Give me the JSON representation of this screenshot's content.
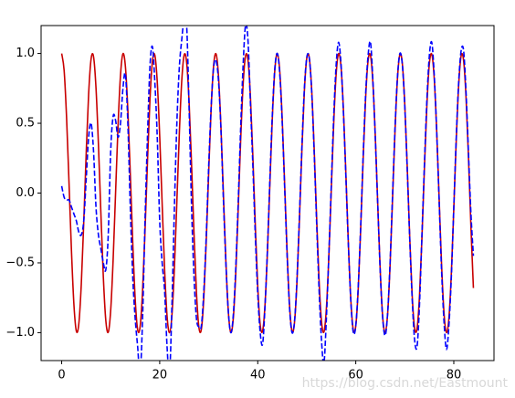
{
  "chart_data": {
    "type": "line",
    "x": [
      0,
      0.5,
      1,
      1.5,
      2,
      2.5,
      3,
      3.5,
      4,
      4.5,
      5,
      5.5,
      6,
      6.5,
      7,
      7.5,
      8,
      8.5,
      9,
      9.5,
      10,
      10.5,
      11,
      11.5,
      12,
      12.5,
      13,
      13.5,
      14,
      14.5,
      15,
      15.5,
      16,
      16.5,
      17,
      17.5,
      18,
      18.5,
      19,
      19.5,
      20,
      20.5,
      21,
      21.5,
      22,
      22.5,
      23,
      23.5,
      24,
      24.5,
      25,
      25.5,
      26,
      26.5,
      27,
      27.5,
      28,
      28.5,
      29,
      29.5,
      30,
      30.5,
      31,
      31.5,
      32,
      32.5,
      33,
      33.5,
      34,
      34.5,
      35,
      35.5,
      36,
      36.5,
      37,
      37.5,
      38,
      38.5,
      39,
      39.5,
      40,
      40.5,
      41,
      41.5,
      42,
      42.5,
      43,
      43.5,
      44,
      44.5,
      45,
      45.5,
      46,
      46.5,
      47,
      47.5,
      48,
      48.5,
      49,
      49.5,
      50,
      50.5,
      51,
      51.5,
      52,
      52.5,
      53,
      53.5,
      54,
      54.5,
      55,
      55.5,
      56,
      56.5,
      57,
      57.5,
      58,
      58.5,
      59,
      59.5,
      60,
      60.5,
      61,
      61.5,
      62,
      62.5,
      63,
      63.5,
      64,
      64.5,
      65,
      65.5,
      66,
      66.5,
      67,
      67.5,
      68,
      68.5,
      69,
      69.5,
      70,
      70.5,
      71,
      71.5,
      72,
      72.5,
      73,
      73.5,
      74,
      74.5,
      75,
      75.5,
      76,
      76.5,
      77,
      77.5,
      78,
      78.5,
      79,
      79.5,
      80,
      80.5,
      81,
      81.5,
      82,
      82.5,
      83,
      83.5,
      84
    ],
    "series": [
      {
        "color": "#c80000",
        "dash": false,
        "values": [
          1,
          0.878,
          0.54,
          0.071,
          -0.416,
          -0.801,
          -0.99,
          -0.936,
          -0.654,
          -0.211,
          0.284,
          0.709,
          0.96,
          0.977,
          0.754,
          0.346,
          -0.146,
          -0.602,
          -0.911,
          -0.997,
          -0.839,
          -0.476,
          0.004,
          0.483,
          0.844,
          0.998,
          0.907,
          0.595,
          0.137,
          -0.355,
          -0.76,
          -0.979,
          -0.958,
          -0.702,
          -0.275,
          0.22,
          0.66,
          0.939,
          0.989,
          0.796,
          0.408,
          -0.08,
          -0.548,
          -0.882,
          -1.0,
          -0.873,
          -0.533,
          -0.062,
          0.424,
          0.806,
          0.991,
          0.933,
          0.647,
          0.202,
          -0.292,
          -0.715,
          -0.963,
          -0.975,
          -0.748,
          -0.337,
          0.154,
          0.608,
          0.915,
          0.996,
          0.834,
          0.468,
          -0.013,
          -0.491,
          -0.849,
          -0.998,
          -0.904,
          -0.588,
          -0.128,
          0.363,
          0.766,
          0.98,
          0.955,
          0.696,
          0.267,
          -0.228,
          -0.667,
          -0.943,
          -0.987,
          -0.791,
          -0.4,
          0.088,
          0.556,
          0.886,
          1.0,
          0.869,
          0.525,
          0.053,
          -0.432,
          -0.812,
          -0.992,
          -0.927,
          -0.64,
          -0.194,
          0.3,
          0.721,
          0.965,
          0.973,
          0.742,
          0.33,
          -0.163,
          -0.616,
          -0.918,
          -0.995,
          -0.829,
          -0.461,
          0.022,
          0.499,
          0.853,
          0.999,
          0.9,
          0.581,
          0.119,
          -0.372,
          -0.771,
          -0.982,
          -0.952,
          -0.689,
          -0.258,
          0.237,
          0.673,
          0.945,
          0.986,
          0.785,
          0.392,
          -0.097,
          -0.562,
          -0.891,
          -1.0,
          -0.864,
          -0.517,
          -0.044,
          0.44,
          0.817,
          0.993,
          0.927,
          0.633,
          0.185,
          -0.309,
          -0.727,
          -0.967,
          -0.971,
          -0.736,
          -0.32,
          0.172,
          0.622,
          0.922,
          0.995,
          0.824,
          0.452,
          -0.031,
          -0.507,
          -0.858,
          -0.999,
          -0.897,
          -0.574,
          -0.11,
          0.38,
          0.777,
          0.984,
          0.95,
          0.683,
          0.249,
          -0.246,
          -0.68
        ]
      },
      {
        "color": "#0000ff",
        "dash": true,
        "values": [
          0.05,
          -0.03,
          -0.05,
          -0.05,
          -0.1,
          -0.15,
          -0.2,
          -0.28,
          -0.3,
          -0.2,
          0.1,
          0.4,
          0.5,
          0.3,
          -0.1,
          -0.3,
          -0.4,
          -0.5,
          -0.55,
          -0.3,
          0.3,
          0.55,
          0.52,
          0.4,
          0.5,
          0.75,
          0.85,
          0.5,
          -0.1,
          -0.6,
          -0.9,
          -1.1,
          -1.3,
          -0.9,
          -0.2,
          0.4,
          0.9,
          1.05,
          0.8,
          0.4,
          -0.2,
          -0.5,
          -0.7,
          -1.1,
          -1.3,
          -0.8,
          -0.1,
          0.5,
          0.9,
          1.1,
          1.25,
          1.2,
          0.6,
          -0.1,
          -0.6,
          -0.9,
          -0.96,
          -0.95,
          -0.7,
          -0.3,
          0.2,
          0.62,
          0.9,
          0.95,
          0.8,
          0.45,
          -0.05,
          -0.5,
          -0.85,
          -1.0,
          -0.88,
          -0.55,
          -0.08,
          0.45,
          0.9,
          1.2,
          1.1,
          0.65,
          0.2,
          -0.3,
          -0.72,
          -1.0,
          -1.08,
          -0.8,
          -0.38,
          0.12,
          0.58,
          0.9,
          1.0,
          0.85,
          0.5,
          0.03,
          -0.45,
          -0.83,
          -1.0,
          -0.92,
          -0.62,
          -0.17,
          0.32,
          0.74,
          0.97,
          0.97,
          0.73,
          0.3,
          -0.2,
          -0.68,
          -1.05,
          -1.22,
          -0.9,
          -0.45,
          0.05,
          0.55,
          0.92,
          1.08,
          0.92,
          0.56,
          0.1,
          -0.38,
          -0.78,
          -1.0,
          -0.95,
          -0.67,
          -0.24,
          0.26,
          0.7,
          0.98,
          1.08,
          0.8,
          0.38,
          -0.1,
          -0.57,
          -0.9,
          -1.02,
          -0.86,
          -0.5,
          -0.02,
          0.46,
          0.83,
          1.0,
          0.92,
          0.62,
          0.17,
          -0.32,
          -0.75,
          -1.05,
          -1.1,
          -0.8,
          -0.3,
          0.2,
          0.66,
          0.98,
          1.08,
          0.85,
          0.45,
          -0.05,
          -0.55,
          -0.92,
          -1.12,
          -0.95,
          -0.6,
          -0.1,
          0.4,
          0.8,
          1.02,
          1.02,
          0.72,
          0.28,
          -0.15,
          -0.45
        ]
      }
    ],
    "xlim": [
      -4.2,
      88.2
    ],
    "xticks": [
      0,
      20,
      40,
      60,
      80
    ],
    "ylim": [
      -1.2,
      1.2
    ],
    "yticks": [
      {
        "value": -1,
        "label": "−1.0"
      },
      {
        "value": -0.5,
        "label": "−0.5"
      },
      {
        "value": 0,
        "label": "0.0"
      },
      {
        "value": 0.5,
        "label": "0.5"
      },
      {
        "value": 1,
        "label": "1.0"
      }
    ],
    "watermark": "https://blog.csdn.net/Eastmount"
  }
}
